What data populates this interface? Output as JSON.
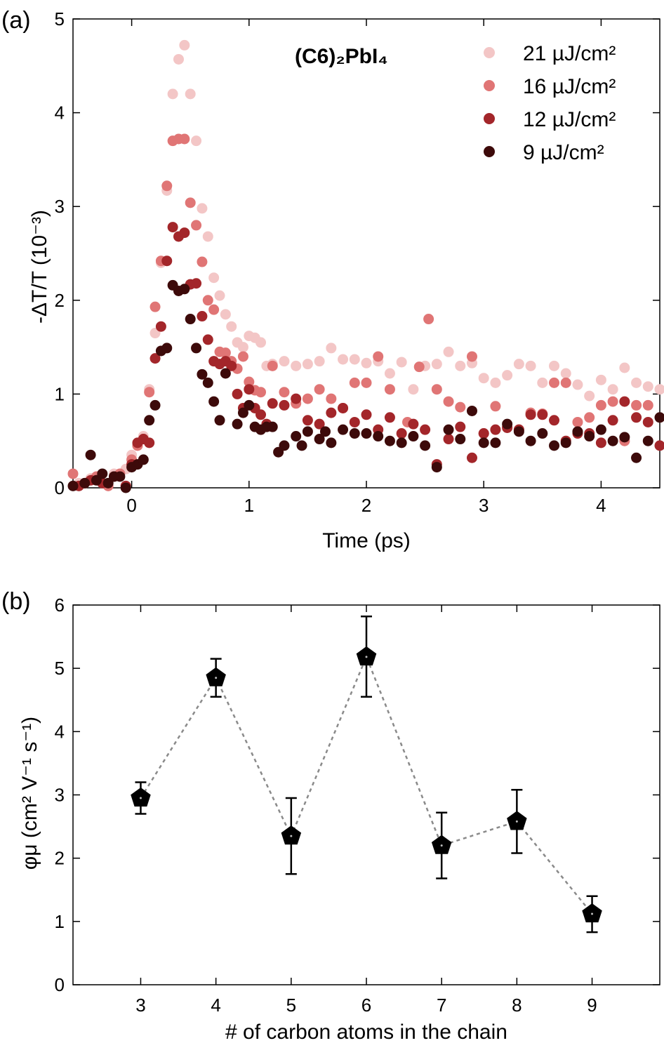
{
  "chart_data": [
    {
      "panel_label": "(a)",
      "type": "scatter",
      "title": "(C6)₂PbI₄",
      "xlabel": "Time (ps)",
      "ylabel": "-ΔT/T (10⁻³)",
      "xlim": [
        -0.5,
        4.5
      ],
      "ylim": [
        0,
        5
      ],
      "xticks": [
        0,
        1,
        2,
        3,
        4
      ],
      "yticks": [
        0,
        1,
        2,
        3,
        4,
        5
      ],
      "grid": false,
      "legend_position": "top-right",
      "series": [
        {
          "name": "21 µJ/cm²",
          "color": "#f3c6c6",
          "x": [
            -0.45,
            -0.35,
            -0.25,
            -0.15,
            -0.05,
            0.0,
            0.05,
            0.1,
            0.15,
            0.2,
            0.25,
            0.3,
            0.35,
            0.4,
            0.45,
            0.5,
            0.55,
            0.6,
            0.65,
            0.7,
            0.75,
            0.8,
            0.85,
            0.9,
            0.95,
            1.0,
            1.05,
            1.1,
            1.15,
            1.2,
            1.3,
            1.4,
            1.5,
            1.6,
            1.7,
            1.8,
            1.9,
            2.0,
            2.1,
            2.2,
            2.3,
            2.4,
            2.5,
            2.6,
            2.7,
            2.8,
            2.9,
            3.0,
            3.1,
            3.2,
            3.3,
            3.4,
            3.5,
            3.6,
            3.7,
            3.8,
            3.9,
            4.0,
            4.1,
            4.2,
            4.3,
            4.4,
            4.5
          ],
          "y": [
            0.05,
            0.1,
            0.05,
            0.15,
            0.2,
            0.35,
            0.45,
            0.55,
            1.05,
            1.65,
            2.4,
            3.17,
            4.2,
            4.57,
            4.72,
            4.2,
            3.7,
            2.98,
            2.68,
            2.24,
            2.05,
            1.85,
            1.72,
            1.55,
            1.5,
            1.62,
            1.6,
            1.55,
            1.3,
            1.32,
            1.35,
            1.3,
            1.32,
            1.35,
            1.49,
            1.37,
            1.37,
            1.33,
            1.35,
            1.22,
            1.34,
            1.05,
            1.3,
            1.32,
            1.45,
            1.3,
            1.33,
            1.17,
            1.12,
            1.2,
            1.32,
            1.3,
            1.12,
            1.3,
            1.22,
            1.1,
            0.98,
            1.15,
            1.05,
            1.28,
            1.12,
            1.08,
            1.05
          ]
        },
        {
          "name": "16 µJ/cm²",
          "color": "#e07575",
          "x": [
            -0.5,
            -0.4,
            -0.3,
            -0.2,
            -0.1,
            0.0,
            0.05,
            0.1,
            0.15,
            0.2,
            0.25,
            0.3,
            0.35,
            0.4,
            0.45,
            0.5,
            0.55,
            0.6,
            0.65,
            0.7,
            0.75,
            0.8,
            0.85,
            0.9,
            0.95,
            1.0,
            1.05,
            1.1,
            1.2,
            1.3,
            1.4,
            1.5,
            1.6,
            1.7,
            1.8,
            1.9,
            2.0,
            2.1,
            2.2,
            2.35,
            2.45,
            2.53,
            2.6,
            2.7,
            2.8,
            2.9,
            3.0,
            3.1,
            3.2,
            3.3,
            3.4,
            3.5,
            3.6,
            3.7,
            3.8,
            3.9,
            4.0,
            4.1,
            4.2,
            4.3,
            4.4
          ],
          "y": [
            0.15,
            0.05,
            0.12,
            0.02,
            0.15,
            0.3,
            0.45,
            0.52,
            1.02,
            1.93,
            2.42,
            3.22,
            3.7,
            3.72,
            3.72,
            3.04,
            2.8,
            2.41,
            2.0,
            1.9,
            1.45,
            1.44,
            1.35,
            1.27,
            1.4,
            1.13,
            1.04,
            1.02,
            1.3,
            1.02,
            0.9,
            0.95,
            1.05,
            0.95,
            0.85,
            1.12,
            1.12,
            1.4,
            1.05,
            0.7,
            1.29,
            1.8,
            1.05,
            0.92,
            0.86,
            1.4,
            0.58,
            0.87,
            0.65,
            0.62,
            0.8,
            0.79,
            1.12,
            1.12,
            0.7,
            0.75,
            0.88,
            0.92,
            0.5,
            0.88,
            0.88
          ]
        },
        {
          "name": "12 µJ/cm²",
          "color": "#a3262a",
          "x": [
            -0.45,
            -0.35,
            -0.25,
            -0.15,
            -0.05,
            0.0,
            0.05,
            0.1,
            0.15,
            0.2,
            0.25,
            0.3,
            0.35,
            0.4,
            0.45,
            0.5,
            0.55,
            0.6,
            0.65,
            0.7,
            0.75,
            0.8,
            0.85,
            0.9,
            0.95,
            1.0,
            1.05,
            1.1,
            1.15,
            1.2,
            1.3,
            1.4,
            1.5,
            1.6,
            1.7,
            1.8,
            1.9,
            2.0,
            2.1,
            2.2,
            2.3,
            2.4,
            2.5,
            2.6,
            2.7,
            2.8,
            2.9,
            3.0,
            3.1,
            3.2,
            3.3,
            3.4,
            3.5,
            3.6,
            3.7,
            3.8,
            3.9,
            4.0,
            4.1,
            4.2,
            4.3,
            4.4,
            4.5
          ],
          "y": [
            0.02,
            0.08,
            0.05,
            0.12,
            0.02,
            0.25,
            0.48,
            0.52,
            0.48,
            1.38,
            1.72,
            2.42,
            2.78,
            2.68,
            2.72,
            2.17,
            2.18,
            1.83,
            1.58,
            1.35,
            1.32,
            1.35,
            1.3,
            1.0,
            0.85,
            1.05,
            0.85,
            0.78,
            0.68,
            0.9,
            0.88,
            0.95,
            0.72,
            0.68,
            0.8,
            0.85,
            0.7,
            0.78,
            0.62,
            0.75,
            0.58,
            0.68,
            0.62,
            0.25,
            0.52,
            0.65,
            0.32,
            0.58,
            0.62,
            0.64,
            0.62,
            0.78,
            0.78,
            0.72,
            0.5,
            0.58,
            0.58,
            0.48,
            0.72,
            0.92,
            0.75,
            0.7,
            0.45
          ]
        },
        {
          "name": "9 µJ/cm²",
          "color": "#3d0a0a",
          "x": [
            -0.5,
            -0.4,
            -0.35,
            -0.3,
            -0.25,
            -0.2,
            -0.15,
            -0.1,
            -0.05,
            0.0,
            0.05,
            0.1,
            0.15,
            0.2,
            0.25,
            0.3,
            0.35,
            0.4,
            0.45,
            0.5,
            0.55,
            0.6,
            0.65,
            0.7,
            0.75,
            0.8,
            0.9,
            0.95,
            1.0,
            1.05,
            1.1,
            1.15,
            1.2,
            1.25,
            1.3,
            1.4,
            1.45,
            1.5,
            1.6,
            1.65,
            1.7,
            1.8,
            1.9,
            2.0,
            2.1,
            2.2,
            2.3,
            2.4,
            2.5,
            2.6,
            2.7,
            2.8,
            2.9,
            3.0,
            3.1,
            3.2,
            3.3,
            3.4,
            3.5,
            3.6,
            3.7,
            3.8,
            3.9,
            4.0,
            4.1,
            4.2,
            4.3,
            4.4,
            4.5
          ],
          "y": [
            0.02,
            0.05,
            0.35,
            0.08,
            0.15,
            0.05,
            0.12,
            0.12,
            0.0,
            0.22,
            0.25,
            0.3,
            0.72,
            0.88,
            1.46,
            1.49,
            2.16,
            2.1,
            2.12,
            1.8,
            1.49,
            1.21,
            1.12,
            0.92,
            0.72,
            1.22,
            0.68,
            0.8,
            0.88,
            0.65,
            0.62,
            0.65,
            0.65,
            0.38,
            0.45,
            0.55,
            0.45,
            0.6,
            0.52,
            0.6,
            0.48,
            0.62,
            0.58,
            0.58,
            0.55,
            0.5,
            0.48,
            0.55,
            0.45,
            0.22,
            0.62,
            0.52,
            0.82,
            0.48,
            0.48,
            0.68,
            0.6,
            0.5,
            0.58,
            0.45,
            0.48,
            0.6,
            0.55,
            0.62,
            0.5,
            0.54,
            0.32,
            0.5,
            0.75
          ]
        }
      ]
    },
    {
      "panel_label": "(b)",
      "type": "scatter",
      "xlabel": "# of carbon atoms in the chain",
      "ylabel": "φμ (cm² V⁻¹ s⁻¹)",
      "xlim": [
        2.1,
        9.9
      ],
      "ylim": [
        0,
        6
      ],
      "xticks": [
        3,
        4,
        5,
        6,
        7,
        8,
        9
      ],
      "yticks": [
        0,
        1,
        2,
        3,
        4,
        5,
        6
      ],
      "grid": false,
      "marker": "pentagon",
      "line": "dotted",
      "series": [
        {
          "x": [
            3,
            4,
            5,
            6,
            7,
            8,
            9
          ],
          "y": [
            2.95,
            4.85,
            2.35,
            5.18,
            2.2,
            2.58,
            1.12
          ],
          "yerr_low": [
            2.7,
            4.55,
            1.75,
            4.55,
            1.68,
            2.08,
            0.83
          ],
          "yerr_high": [
            3.2,
            5.15,
            2.95,
            5.82,
            2.72,
            3.08,
            1.4
          ]
        }
      ]
    }
  ]
}
